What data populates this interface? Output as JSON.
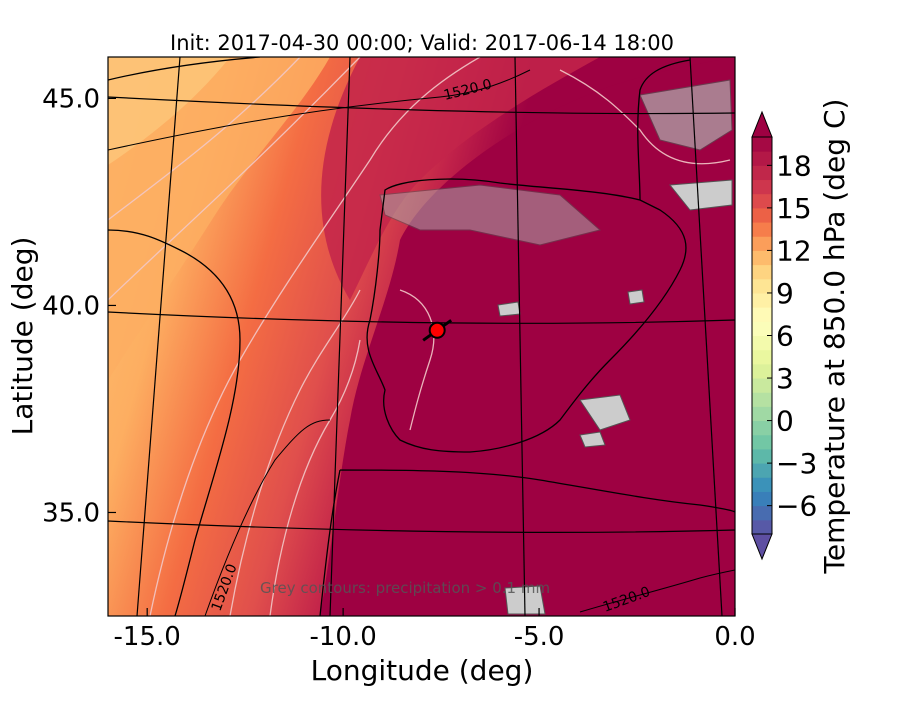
{
  "chart_data": {
    "type": "heatmap",
    "title": "Init: 2017-04-30 00:00; Valid: 2017-06-14 18:00",
    "xlabel": "Longitude (deg)",
    "ylabel": "Latitude (deg)",
    "x_ticks": [
      "-15.0",
      "-10.0",
      "-5.0",
      "0.0"
    ],
    "y_ticks": [
      "45.0",
      "40.0",
      "35.0"
    ],
    "xlim": [
      -16,
      0
    ],
    "ylim": [
      32.5,
      46
    ],
    "colorbar": {
      "label": "Temperature at 850.0 hPa (deg C)",
      "ticks": [
        "18",
        "15",
        "12",
        "9",
        "6",
        "3",
        "0",
        "−3",
        "−6"
      ],
      "range": [
        -8,
        20
      ],
      "extend": "both",
      "colormap": "Spectral_r"
    },
    "contour_labels": [
      "1520.0",
      "1520.0",
      "1520.0"
    ],
    "annotation": "Grey contours: precipitation > 0.1 mm",
    "marker": {
      "lon": -7.6,
      "lat": 39.4,
      "color": "#ff0000"
    },
    "colors": {
      "warmest": "#9e0142",
      "hot": "#d53e4f",
      "warm": "#f46d43",
      "mild": "#fdae61",
      "pale": "#fee08b",
      "precip_fill": "#cccccc"
    }
  }
}
